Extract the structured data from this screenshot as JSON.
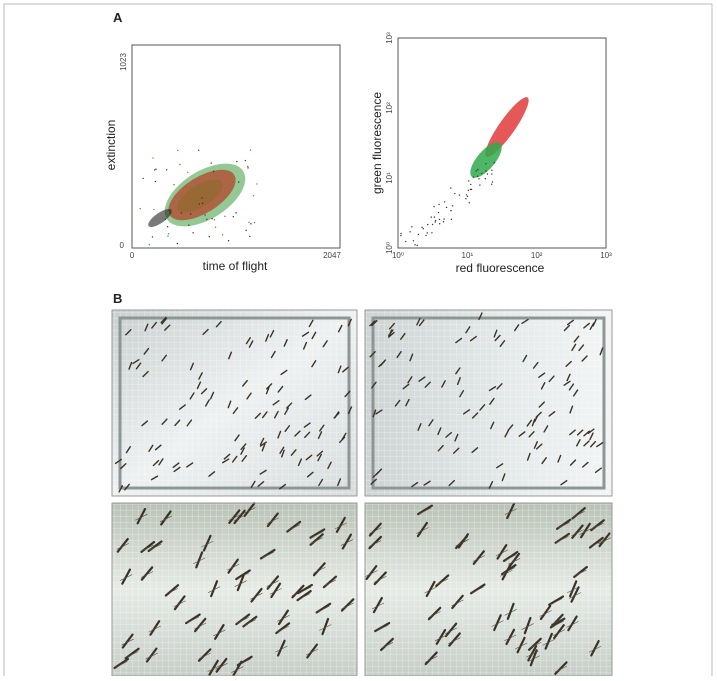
{
  "figure": {
    "panel_a": {
      "label": "A",
      "left_plot": {
        "x_label": "time of flight",
        "y_label": "extinction",
        "x_ticks": [
          "0",
          "2047"
        ],
        "y_ticks": [
          "0",
          "1023"
        ]
      },
      "right_plot": {
        "x_label": "red fluorescence",
        "y_label": "green fluorescence",
        "x_ticks": [
          "10⁰",
          "10¹",
          "10²",
          "10³"
        ],
        "y_ticks": [
          "10⁰",
          "10¹",
          "10²",
          "10³"
        ]
      }
    },
    "panel_b": {
      "label": "B"
    }
  }
}
